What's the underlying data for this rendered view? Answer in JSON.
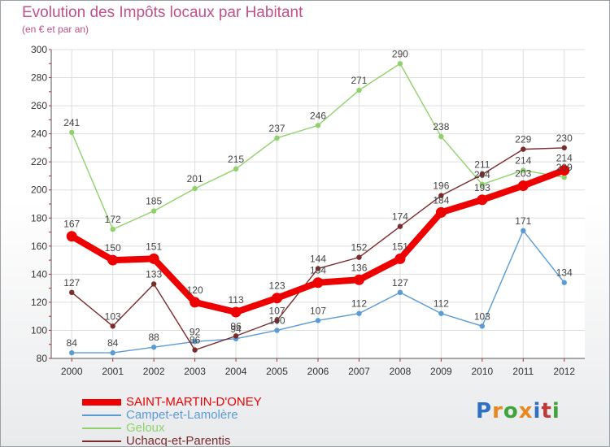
{
  "title": "Evolution des Impôts locaux par Habitant",
  "subtitle": "(en € et par an)",
  "logo": {
    "text": "Proxiti",
    "letter_colors": [
      "#2f6fc4",
      "#e6891e",
      "#3fa43a",
      "#e6891e",
      "#2f6fc4",
      "#c03a3a",
      "#3fa43a"
    ]
  },
  "chart_data": {
    "type": "line",
    "title": "Evolution des Impôts locaux par Habitant",
    "subtitle": "(en € et par an)",
    "xlabel": "",
    "ylabel": "",
    "x": [
      "2000",
      "2001",
      "2002",
      "2003",
      "2004",
      "2005",
      "2006",
      "2007",
      "2008",
      "2009",
      "2010",
      "2011",
      "2012"
    ],
    "ylim": [
      80,
      300
    ],
    "yticks": [
      80,
      100,
      120,
      140,
      160,
      180,
      200,
      220,
      240,
      260,
      280,
      300
    ],
    "grid": true,
    "legend_position": "bottom-left",
    "series": [
      {
        "name": "SAINT-MARTIN-D'ONEY",
        "color": "#ee0000",
        "values": [
          167,
          150,
          151,
          120,
          113,
          123,
          134,
          136,
          151,
          184,
          193,
          203,
          214
        ],
        "labels": [
          "167",
          "150",
          "151",
          "120",
          "113",
          "123",
          "134",
          "136",
          "151",
          "184",
          "193",
          "203",
          "214"
        ]
      },
      {
        "name": "Campet-et-Lamolère",
        "color": "#5b9bd5",
        "values": [
          84,
          84,
          88,
          92,
          94,
          100,
          107,
          112,
          127,
          112,
          103,
          171,
          134
        ],
        "labels": [
          "84",
          "84",
          "88",
          "92",
          "94",
          "100",
          "107",
          "112",
          "127",
          "112",
          "103",
          "171",
          "134"
        ]
      },
      {
        "name": "Geloux",
        "color": "#8fd26a",
        "values": [
          241,
          172,
          185,
          201,
          215,
          237,
          246,
          271,
          290,
          238,
          204,
          214,
          209
        ],
        "labels": [
          "241",
          "172",
          "185",
          "201",
          "215",
          "237",
          "246",
          "271",
          "290",
          "238",
          "204",
          "214",
          "209"
        ]
      },
      {
        "name": "Uchacq-et-Parentis",
        "color": "#7a2b2b",
        "values": [
          127,
          103,
          133,
          86,
          96,
          107,
          144,
          152,
          174,
          196,
          211,
          229,
          230
        ],
        "labels": [
          "127",
          "103",
          "133",
          "86",
          "96",
          "107",
          "144",
          "152",
          "174",
          "196",
          "211",
          "229",
          "230"
        ]
      }
    ]
  }
}
